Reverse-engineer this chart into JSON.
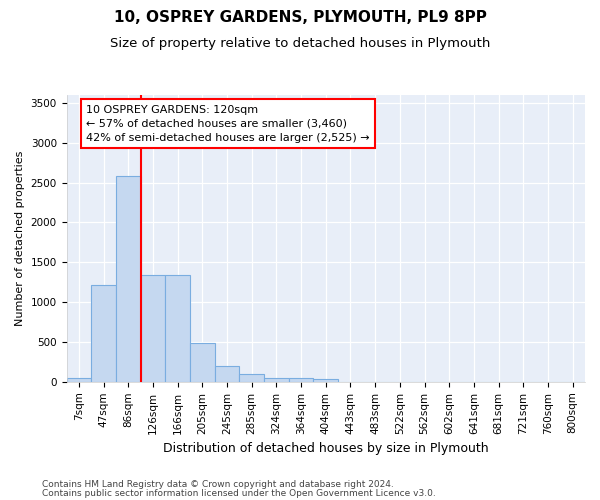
{
  "title1": "10, OSPREY GARDENS, PLYMOUTH, PL9 8PP",
  "title2": "Size of property relative to detached houses in Plymouth",
  "xlabel": "Distribution of detached houses by size in Plymouth",
  "ylabel": "Number of detached properties",
  "bar_labels": [
    "7sqm",
    "47sqm",
    "86sqm",
    "126sqm",
    "166sqm",
    "205sqm",
    "245sqm",
    "285sqm",
    "324sqm",
    "364sqm",
    "404sqm",
    "443sqm",
    "483sqm",
    "522sqm",
    "562sqm",
    "602sqm",
    "641sqm",
    "681sqm",
    "721sqm",
    "760sqm",
    "800sqm"
  ],
  "bar_values": [
    50,
    1220,
    2580,
    1340,
    1340,
    490,
    195,
    100,
    50,
    45,
    30,
    0,
    0,
    0,
    0,
    0,
    0,
    0,
    0,
    0,
    0
  ],
  "bar_color": "#c5d8f0",
  "bar_edgecolor": "#7aade0",
  "vline_color": "red",
  "vline_x_idx": 2.5,
  "annotation_line1": "10 OSPREY GARDENS: 120sqm",
  "annotation_line2": "← 57% of detached houses are smaller (3,460)",
  "annotation_line3": "42% of semi-detached houses are larger (2,525) →",
  "annotation_box_color": "white",
  "annotation_box_edgecolor": "red",
  "ylim": [
    0,
    3600
  ],
  "yticks": [
    0,
    500,
    1000,
    1500,
    2000,
    2500,
    3000,
    3500
  ],
  "plot_bg_color": "#e8eef8",
  "footer1": "Contains HM Land Registry data © Crown copyright and database right 2024.",
  "footer2": "Contains public sector information licensed under the Open Government Licence v3.0.",
  "title_fontsize": 11,
  "subtitle_fontsize": 9.5,
  "xlabel_fontsize": 9,
  "ylabel_fontsize": 8,
  "tick_fontsize": 7.5,
  "footer_fontsize": 6.5
}
